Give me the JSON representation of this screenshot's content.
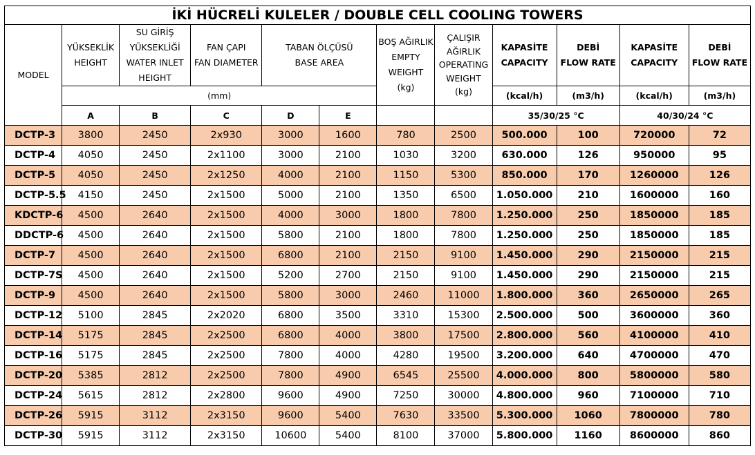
{
  "title": "İKİ HÜCRELİ KULELER / DOUBLE CELL COOLING TOWERS",
  "headers": {
    "model": "MODEL",
    "height": [
      "YÜKSEKLİK",
      "HEIGHT"
    ],
    "water_inlet": [
      "SU GİRİŞ",
      "YÜKSEKLİĞİ",
      "WATER INLET",
      "HEIGHT"
    ],
    "fan_diameter": [
      "FAN ÇAPI",
      "FAN DIAMETER"
    ],
    "base_area": [
      "TABAN ÖLÇÜSÜ",
      "BASE AREA"
    ],
    "empty_weight": [
      "BOŞ AĞIRLIK",
      "EMPTY",
      "WEIGHT",
      "(kg)"
    ],
    "operating_weight": [
      "ÇALIŞIR",
      "AĞIRLIK",
      "OPERATING",
      "WEIGHT",
      "(kg)"
    ],
    "capacity": [
      "KAPASİTE",
      "CAPACITY"
    ],
    "flow_rate": [
      "DEBİ",
      "FLOW RATE"
    ],
    "capacity2": [
      "KAPASİTE",
      "CAPACITY"
    ],
    "flow_rate2": [
      "DEBİ",
      "FLOW RATE"
    ],
    "mm": "(mm)",
    "kcal_unit": "(kcal/h)",
    "m3_unit": "(m3/h)",
    "kcal_unit2": "(kcal/h)",
    "m3_unit2": "(m3/h)",
    "letters": [
      "A",
      "B",
      "C",
      "D",
      "E"
    ],
    "cond1": "35/30/25 °C",
    "cond2": "40/30/24 °C"
  },
  "rows": [
    [
      "DCTP-3",
      "3800",
      "2450",
      "2x930",
      "3000",
      "1600",
      "780",
      "2500",
      "500.000",
      "100",
      "720000",
      "72"
    ],
    [
      "DCTP-4",
      "4050",
      "2450",
      "2x1100",
      "3000",
      "2100",
      "1030",
      "3200",
      "630.000",
      "126",
      "950000",
      "95"
    ],
    [
      "DCTP-5",
      "4050",
      "2450",
      "2x1250",
      "4000",
      "2100",
      "1150",
      "5300",
      "850.000",
      "170",
      "1260000",
      "126"
    ],
    [
      "DCTP-5.5",
      "4150",
      "2450",
      "2x1500",
      "5000",
      "2100",
      "1350",
      "6500",
      "1.050.000",
      "210",
      "1600000",
      "160"
    ],
    [
      "KDCTP-6",
      "4500",
      "2640",
      "2x1500",
      "4000",
      "3000",
      "1800",
      "7800",
      "1.250.000",
      "250",
      "1850000",
      "185"
    ],
    [
      "DDCTP-6",
      "4500",
      "2640",
      "2x1500",
      "5800",
      "2100",
      "1800",
      "7800",
      "1.250.000",
      "250",
      "1850000",
      "185"
    ],
    [
      "DCTP-7",
      "4500",
      "2640",
      "2x1500",
      "6800",
      "2100",
      "2150",
      "9100",
      "1.450.000",
      "290",
      "2150000",
      "215"
    ],
    [
      "DCTP-7S",
      "4500",
      "2640",
      "2x1500",
      "5200",
      "2700",
      "2150",
      "9100",
      "1.450.000",
      "290",
      "2150000",
      "215"
    ],
    [
      "DCTP-9",
      "4500",
      "2640",
      "2x1500",
      "5800",
      "3000",
      "2460",
      "11000",
      "1.800.000",
      "360",
      "2650000",
      "265"
    ],
    [
      "DCTP-12",
      "5100",
      "2845",
      "2x2020",
      "6800",
      "3500",
      "3310",
      "15300",
      "2.500.000",
      "500",
      "3600000",
      "360"
    ],
    [
      "DCTP-14",
      "5175",
      "2845",
      "2x2500",
      "6800",
      "4000",
      "3800",
      "17500",
      "2.800.000",
      "560",
      "4100000",
      "410"
    ],
    [
      "DCTP-16",
      "5175",
      "2845",
      "2x2500",
      "7800",
      "4000",
      "4280",
      "19500",
      "3.200.000",
      "640",
      "4700000",
      "470"
    ],
    [
      "DCTP-20",
      "5385",
      "2812",
      "2x2500",
      "7800",
      "4900",
      "6545",
      "25500",
      "4.000.000",
      "800",
      "5800000",
      "580"
    ],
    [
      "DCTP-24",
      "5615",
      "2812",
      "2x2800",
      "9600",
      "4900",
      "7250",
      "30000",
      "4.800.000",
      "960",
      "7100000",
      "710"
    ],
    [
      "DCTP-26",
      "5915",
      "3112",
      "2x3150",
      "9600",
      "5400",
      "7630",
      "33500",
      "5.300.000",
      "1060",
      "7800000",
      "780"
    ],
    [
      "DCTP-30",
      "5915",
      "3112",
      "2x3150",
      "10600",
      "5400",
      "8100",
      "37000",
      "5.800.000",
      "1160",
      "8600000",
      "860"
    ]
  ],
  "colors": {
    "row_highlight": "#f8cbad",
    "border": "#000000"
  }
}
